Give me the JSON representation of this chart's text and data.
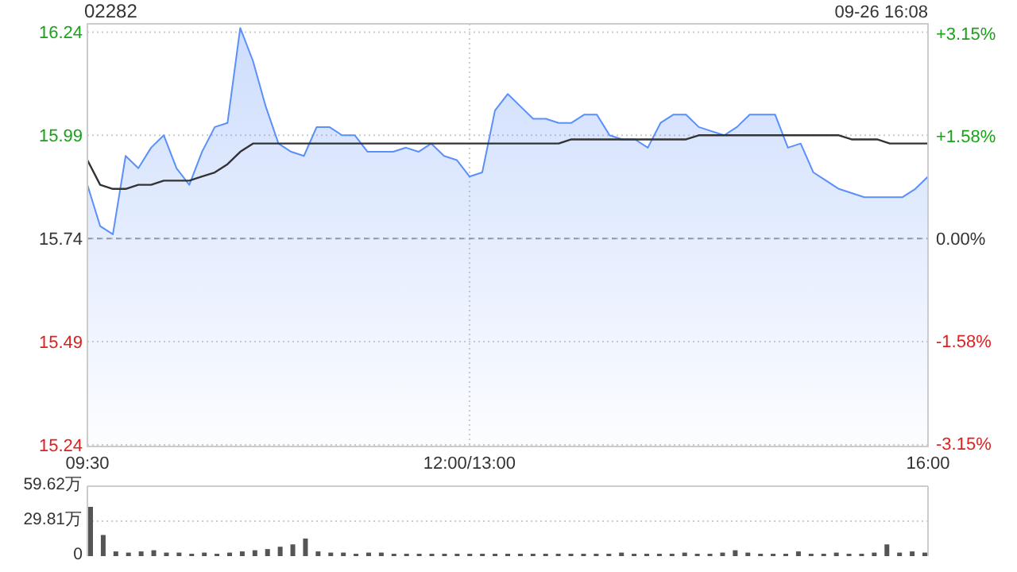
{
  "chart_data": [
    {
      "type": "area",
      "title": "02282",
      "annotations": [
        "09-26 16:08"
      ],
      "categories": [
        "09:30",
        null,
        null,
        null,
        null,
        null,
        null,
        null,
        null,
        null,
        null,
        null,
        null,
        null,
        null,
        null,
        null,
        null,
        null,
        null,
        null,
        null,
        null,
        null,
        null,
        null,
        null,
        null,
        null,
        null,
        "12:00/13:00",
        null,
        null,
        null,
        null,
        null,
        null,
        null,
        null,
        null,
        null,
        null,
        null,
        null,
        null,
        null,
        null,
        null,
        null,
        null,
        null,
        null,
        null,
        null,
        null,
        null,
        null,
        null,
        null,
        null,
        null,
        null,
        null,
        null,
        null,
        null,
        "16:00"
      ],
      "ylim": [
        15.236,
        16.26
      ],
      "yticks": [
        15.24,
        15.49,
        15.74,
        15.99,
        16.24
      ],
      "y2lim": [
        -3.2,
        3.3
      ],
      "y2ticks": [
        {
          "value": -3.15,
          "label": "-3.15%"
        },
        {
          "value": -1.58,
          "label": "-1.58%"
        },
        {
          "value": 0,
          "label": "0.00%"
        },
        {
          "value": 1.58,
          "label": "+1.58%"
        },
        {
          "value": 3.15,
          "label": "+3.15%"
        }
      ],
      "grid": true,
      "ref_lines": [
        {
          "axis": "y",
          "value": 15.74,
          "color": "#999999",
          "line_style": "dashed"
        }
      ],
      "series": [
        {
          "type": "area",
          "color": "#5b8ff9",
          "values": [
            15.87,
            15.77,
            15.75,
            15.94,
            15.91,
            15.96,
            15.99,
            15.91,
            15.87,
            15.95,
            16.01,
            16.02,
            16.25,
            16.17,
            16.06,
            15.97,
            15.95,
            15.94,
            16.01,
            16.01,
            15.99,
            15.99,
            15.95,
            15.95,
            15.95,
            15.96,
            15.95,
            15.97,
            15.94,
            15.93,
            15.89,
            15.9,
            16.05,
            16.09,
            16.06,
            16.03,
            16.03,
            16.02,
            16.02,
            16.04,
            16.04,
            15.99,
            15.98,
            15.98,
            15.96,
            16.02,
            16.04,
            16.04,
            16.01,
            16.0,
            15.99,
            16.01,
            16.04,
            16.04,
            16.04,
            15.96,
            15.97,
            15.9,
            15.88,
            15.86,
            15.85,
            15.84,
            15.84,
            15.84,
            15.84,
            15.86,
            15.89
          ]
        },
        {
          "type": "line",
          "color": "#333333",
          "values": [
            15.93,
            15.87,
            15.86,
            15.86,
            15.87,
            15.87,
            15.88,
            15.88,
            15.88,
            15.89,
            15.9,
            15.92,
            15.95,
            15.97,
            15.97,
            15.97,
            15.97,
            15.97,
            15.97,
            15.97,
            15.97,
            15.97,
            15.97,
            15.97,
            15.97,
            15.97,
            15.97,
            15.97,
            15.97,
            15.97,
            15.97,
            15.97,
            15.97,
            15.97,
            15.97,
            15.97,
            15.97,
            15.97,
            15.98,
            15.98,
            15.98,
            15.98,
            15.98,
            15.98,
            15.98,
            15.98,
            15.98,
            15.98,
            15.99,
            15.99,
            15.99,
            15.99,
            15.99,
            15.99,
            15.99,
            15.99,
            15.99,
            15.99,
            15.99,
            15.99,
            15.98,
            15.98,
            15.98,
            15.97,
            15.97,
            15.97,
            15.97
          ]
        }
      ]
    },
    {
      "type": "bar",
      "categories": [
        null,
        null,
        null,
        null,
        null,
        null,
        null,
        null,
        null,
        null,
        null,
        null,
        null,
        null,
        null,
        null,
        null,
        null,
        null,
        null,
        null,
        null,
        null,
        null,
        null,
        null,
        null,
        null,
        null,
        null,
        null,
        null,
        null,
        null,
        null,
        null,
        null,
        null,
        null,
        null,
        null,
        null,
        null,
        null,
        null,
        null,
        null,
        null,
        null,
        null,
        null,
        null,
        null,
        null,
        null,
        null,
        null,
        null,
        null,
        null,
        null,
        null,
        null,
        null,
        null,
        null,
        null
      ],
      "ylim": [
        0,
        59.62
      ],
      "yticks": [
        {
          "value": 0,
          "label": "0"
        },
        {
          "value": 29.81,
          "label": "29.81万"
        },
        {
          "value": 59.62,
          "label": "59.62万"
        }
      ],
      "tick_labels": "y",
      "grid": "y",
      "series": [
        {
          "color": "#555555",
          "values": [
            42,
            18,
            4,
            3,
            4,
            5,
            3,
            3,
            2,
            3,
            2,
            3,
            4,
            5,
            6,
            8,
            10,
            15,
            4,
            3,
            3,
            2,
            3,
            3,
            2,
            2,
            2,
            2,
            2,
            2,
            2,
            2,
            2,
            2,
            2,
            2,
            2,
            2,
            2,
            2,
            2,
            2,
            3,
            2,
            2,
            2,
            2,
            3,
            2,
            2,
            3,
            5,
            3,
            2,
            2,
            2,
            4,
            2,
            2,
            3,
            2,
            2,
            3,
            10,
            3,
            4,
            3
          ]
        }
      ]
    }
  ]
}
